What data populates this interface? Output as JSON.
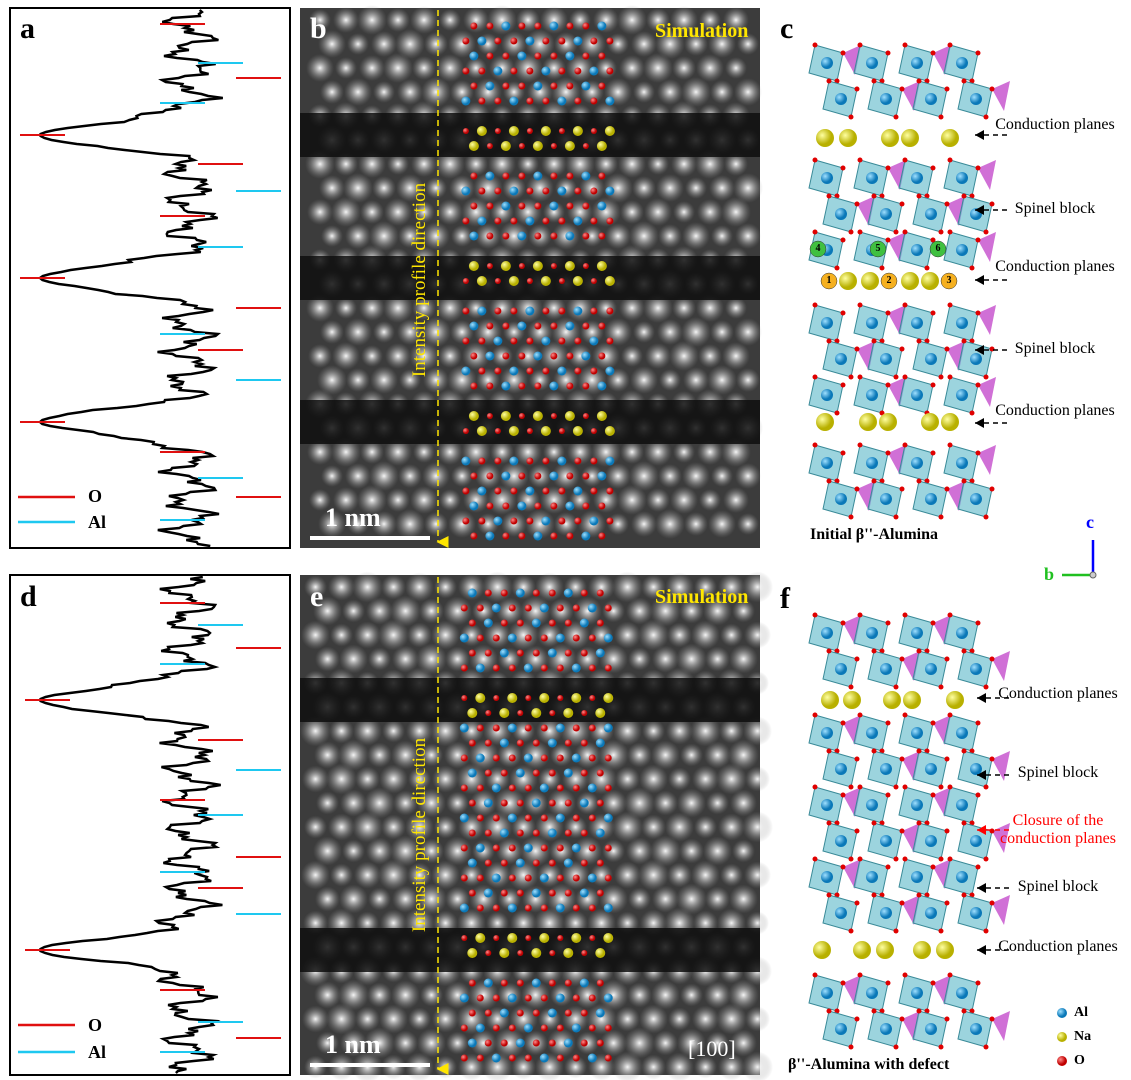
{
  "panels": {
    "a": {
      "label": "a",
      "legend": [
        "O",
        "Al"
      ]
    },
    "b": {
      "label": "b",
      "overlay": "Simulation",
      "direction": "Intensity profile direction",
      "scale_bar": "1 nm"
    },
    "c": {
      "label": "c",
      "annotations": [
        "Conduction planes",
        "Spinel block",
        "Conduction planes",
        "Spinel block",
        "Conduction planes"
      ],
      "sites": [
        1,
        2,
        3,
        4,
        5,
        6
      ],
      "caption": "Initial β''-Alumina",
      "axes": [
        "c",
        "b"
      ]
    },
    "d": {
      "label": "d",
      "legend": [
        "O",
        "Al"
      ]
    },
    "e": {
      "label": "e",
      "overlay": "Simulation",
      "direction": "Intensity profile direction",
      "scale_bar": "1 nm",
      "zone_axis": "[100]"
    },
    "f": {
      "label": "f",
      "annotations": [
        "Conduction planes",
        "Spinel block",
        "Closure of the conduction planes",
        "Spinel block",
        "Conduction planes"
      ],
      "caption": "β''-Alumina with defect",
      "legend": [
        "Al",
        "Na",
        "O"
      ]
    }
  }
}
